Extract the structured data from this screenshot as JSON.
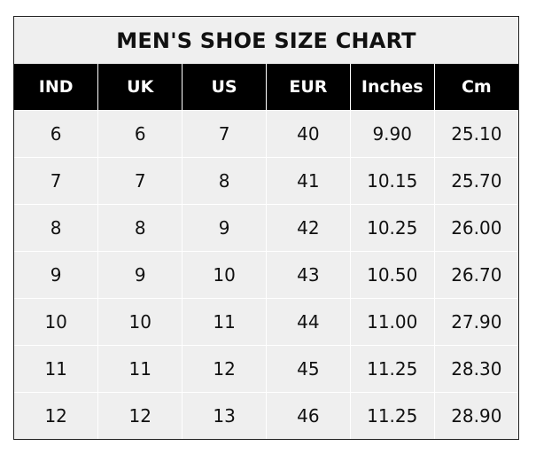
{
  "title": "MEN'S SHOE SIZE CHART",
  "columns": [
    "IND",
    "UK",
    "US",
    "EUR",
    "Inches",
    "Cm"
  ],
  "rows": [
    [
      "6",
      "6",
      "7",
      "40",
      "9.90",
      "25.10"
    ],
    [
      "7",
      "7",
      "8",
      "41",
      "10.15",
      "25.70"
    ],
    [
      "8",
      "8",
      "9",
      "42",
      "10.25",
      "26.00"
    ],
    [
      "9",
      "9",
      "10",
      "43",
      "10.50",
      "26.70"
    ],
    [
      "10",
      "10",
      "11",
      "44",
      "11.00",
      "27.90"
    ],
    [
      "11",
      "11",
      "12",
      "45",
      "11.25",
      "28.30"
    ],
    [
      "12",
      "12",
      "13",
      "46",
      "11.25",
      "28.90"
    ]
  ],
  "colors": {
    "header_bg": "#000000",
    "header_text": "#ffffff",
    "cell_bg": "#efefef",
    "grid": "#ffffff"
  }
}
